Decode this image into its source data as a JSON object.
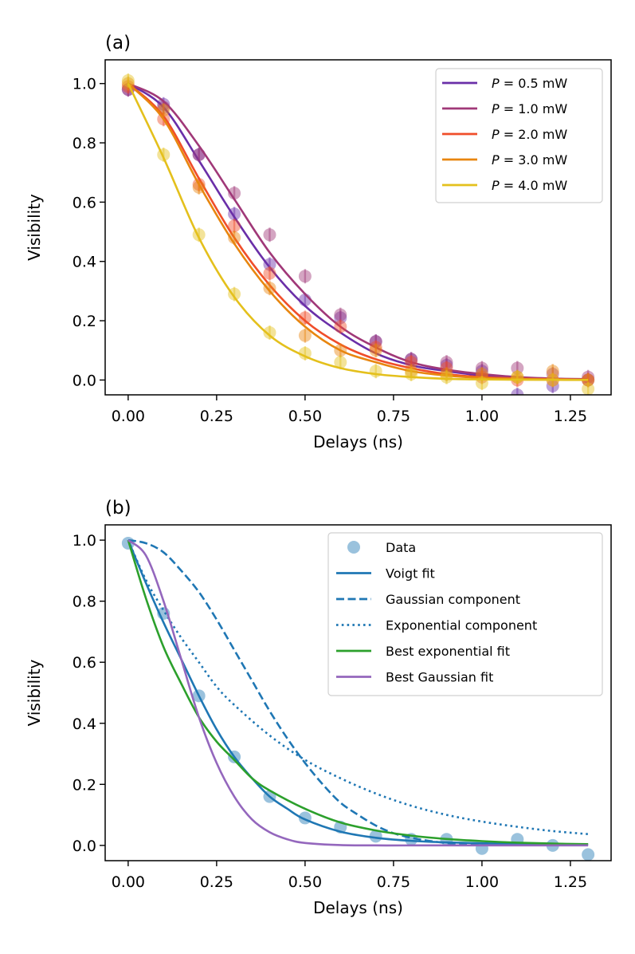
{
  "chart_data": [
    {
      "panel": "(a)",
      "type": "line",
      "xlabel": "Delays (ns)",
      "ylabel": "Visibility",
      "xlim": [
        -0.065,
        1.365
      ],
      "ylim": [
        -0.05,
        1.08
      ],
      "xticks": [
        0.0,
        0.25,
        0.5,
        0.75,
        1.0,
        1.25
      ],
      "xtick_labels": [
        "0.00",
        "0.25",
        "0.50",
        "0.75",
        "1.00",
        "1.25"
      ],
      "yticks": [
        0.0,
        0.2,
        0.4,
        0.6,
        0.8,
        1.0
      ],
      "ytick_labels": [
        "0.0",
        "0.2",
        "0.4",
        "0.6",
        "0.8",
        "1.0"
      ],
      "grid": false,
      "legend_position": "top-right",
      "x": [
        0.0,
        0.1,
        0.2,
        0.3,
        0.4,
        0.5,
        0.6,
        0.7,
        0.8,
        0.9,
        1.0,
        1.1,
        1.2,
        1.3
      ],
      "series": [
        {
          "name_italic": "P",
          "name": " = 0.5 mW",
          "color": "#6a2fa8",
          "points": [
            0.98,
            0.93,
            0.76,
            0.56,
            0.39,
            0.27,
            0.21,
            0.13,
            0.07,
            0.05,
            0.03,
            -0.05,
            -0.02,
            0.0
          ],
          "fit": [
            1.0,
            0.92,
            0.74,
            0.55,
            0.38,
            0.25,
            0.16,
            0.09,
            0.05,
            0.03,
            0.015,
            0.008,
            0.004,
            0.002
          ]
        },
        {
          "name_italic": "P",
          "name": " = 1.0 mW",
          "color": "#a03878",
          "points": [
            0.98,
            0.92,
            0.76,
            0.63,
            0.49,
            0.35,
            0.22,
            0.13,
            0.07,
            0.06,
            0.04,
            0.04,
            0.02,
            0.01
          ],
          "fit": [
            1.0,
            0.94,
            0.79,
            0.61,
            0.43,
            0.29,
            0.18,
            0.11,
            0.06,
            0.035,
            0.02,
            0.01,
            0.005,
            0.003
          ]
        },
        {
          "name_italic": "P",
          "name": " = 2.0 mW",
          "color": "#f04e2a",
          "points": [
            0.99,
            0.88,
            0.66,
            0.52,
            0.36,
            0.21,
            0.18,
            0.11,
            0.06,
            0.04,
            0.01,
            0.0,
            0.0,
            0.0
          ],
          "fit": [
            1.0,
            0.89,
            0.68,
            0.48,
            0.32,
            0.2,
            0.12,
            0.07,
            0.04,
            0.02,
            0.01,
            0.005,
            0.003,
            0.001
          ]
        },
        {
          "name_italic": "P",
          "name": " = 3.0 mW",
          "color": "#e8860f",
          "points": [
            1.0,
            0.91,
            0.65,
            0.48,
            0.31,
            0.15,
            0.1,
            0.1,
            0.03,
            0.02,
            0.02,
            0.01,
            0.03,
            0.0
          ],
          "fit": [
            1.0,
            0.88,
            0.66,
            0.46,
            0.3,
            0.18,
            0.1,
            0.06,
            0.03,
            0.015,
            0.007,
            0.004,
            0.002,
            0.001
          ]
        },
        {
          "name_italic": "P",
          "name": " = 4.0 mW",
          "color": "#e4c01c",
          "points": [
            1.01,
            0.76,
            0.49,
            0.29,
            0.16,
            0.09,
            0.06,
            0.03,
            0.02,
            0.01,
            -0.01,
            0.01,
            0.0,
            -0.03
          ],
          "fit": [
            1.0,
            0.75,
            0.48,
            0.28,
            0.15,
            0.08,
            0.04,
            0.02,
            0.01,
            0.004,
            0.002,
            0.001,
            0.0005,
            0.0002
          ]
        }
      ]
    },
    {
      "panel": "(b)",
      "type": "line",
      "xlabel": "Delays (ns)",
      "ylabel": "Visibility",
      "xlim": [
        -0.065,
        1.365
      ],
      "ylim": [
        -0.05,
        1.05
      ],
      "xticks": [
        0.0,
        0.25,
        0.5,
        0.75,
        1.0,
        1.25
      ],
      "xtick_labels": [
        "0.00",
        "0.25",
        "0.50",
        "0.75",
        "1.00",
        "1.25"
      ],
      "yticks": [
        0.0,
        0.2,
        0.4,
        0.6,
        0.8,
        1.0
      ],
      "ytick_labels": [
        "0.0",
        "0.2",
        "0.4",
        "0.6",
        "0.8",
        "1.0"
      ],
      "grid": false,
      "legend_position": "top-right",
      "data": {
        "name": "Data",
        "color": "#1f77b4",
        "x": [
          0.0,
          0.1,
          0.2,
          0.3,
          0.4,
          0.5,
          0.6,
          0.7,
          0.8,
          0.9,
          1.0,
          1.1,
          1.2,
          1.3
        ],
        "y": [
          0.99,
          0.76,
          0.49,
          0.29,
          0.16,
          0.09,
          0.06,
          0.03,
          0.02,
          0.02,
          -0.01,
          0.02,
          0.0,
          -0.03
        ]
      },
      "series": [
        {
          "name": "Voigt fit",
          "color": "#1f77b4",
          "style": "solid",
          "x": [
            0.0,
            0.05,
            0.1,
            0.15,
            0.2,
            0.25,
            0.3,
            0.35,
            0.4,
            0.45,
            0.5,
            0.6,
            0.7,
            0.8,
            0.9,
            1.0,
            1.1,
            1.2,
            1.3
          ],
          "y": [
            1.0,
            0.86,
            0.73,
            0.61,
            0.49,
            0.38,
            0.29,
            0.22,
            0.16,
            0.12,
            0.085,
            0.045,
            0.025,
            0.015,
            0.01,
            0.007,
            0.005,
            0.004,
            0.003
          ]
        },
        {
          "name": "Gaussian component",
          "color": "#1f77b4",
          "style": "dashed",
          "x": [
            0.0,
            0.05,
            0.1,
            0.15,
            0.2,
            0.25,
            0.3,
            0.35,
            0.4,
            0.45,
            0.5,
            0.55,
            0.6,
            0.65,
            0.7,
            0.75,
            0.8,
            0.85,
            0.9,
            0.95,
            1.0
          ],
          "y": [
            1.0,
            0.99,
            0.96,
            0.9,
            0.83,
            0.74,
            0.64,
            0.54,
            0.44,
            0.35,
            0.27,
            0.2,
            0.14,
            0.1,
            0.065,
            0.04,
            0.025,
            0.015,
            0.008,
            0.004,
            0.002
          ]
        },
        {
          "name": "Exponential component",
          "color": "#1f77b4",
          "style": "dotted",
          "x": [
            0.0,
            0.05,
            0.1,
            0.15,
            0.2,
            0.25,
            0.3,
            0.4,
            0.5,
            0.6,
            0.7,
            0.8,
            0.9,
            1.0,
            1.1,
            1.2,
            1.3
          ],
          "y": [
            1.0,
            0.87,
            0.77,
            0.68,
            0.6,
            0.52,
            0.46,
            0.36,
            0.28,
            0.22,
            0.17,
            0.13,
            0.1,
            0.078,
            0.061,
            0.047,
            0.037
          ]
        },
        {
          "name": "Best exponential fit",
          "color": "#2ca02c",
          "style": "solid",
          "x": [
            0.0,
            0.05,
            0.1,
            0.15,
            0.2,
            0.25,
            0.3,
            0.35,
            0.4,
            0.5,
            0.6,
            0.7,
            0.8,
            0.9,
            1.0,
            1.1,
            1.2,
            1.3
          ],
          "y": [
            1.0,
            0.81,
            0.65,
            0.53,
            0.42,
            0.34,
            0.28,
            0.22,
            0.18,
            0.12,
            0.075,
            0.049,
            0.032,
            0.021,
            0.014,
            0.009,
            0.006,
            0.004
          ]
        },
        {
          "name": "Best Gaussian fit",
          "color": "#9467bd",
          "style": "solid",
          "x": [
            0.0,
            0.05,
            0.1,
            0.15,
            0.2,
            0.25,
            0.3,
            0.35,
            0.4,
            0.45,
            0.5,
            0.6,
            0.7,
            0.8,
            1.0,
            1.3
          ],
          "y": [
            1.0,
            0.95,
            0.8,
            0.61,
            0.42,
            0.27,
            0.16,
            0.085,
            0.043,
            0.02,
            0.008,
            0.001,
            0.0,
            0.0,
            0.0,
            0.0
          ]
        }
      ]
    }
  ]
}
